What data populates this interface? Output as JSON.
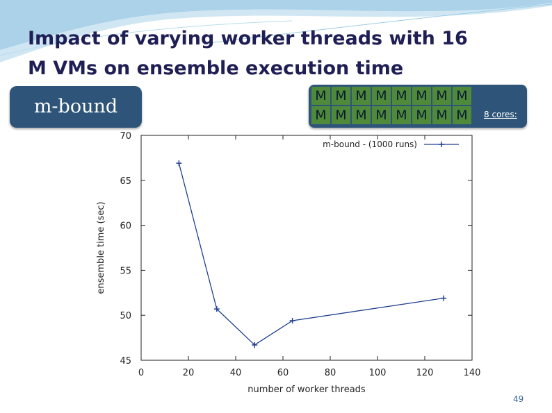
{
  "slide": {
    "title_line1": "Impact of varying worker threads with 16",
    "title_m": "M",
    "title_line2_rest": " VMs on ensemble execution time",
    "badge_label": "m-bound",
    "vm_label": "M",
    "vm_count": 16,
    "cores_label": "8 cores:",
    "page_number": "49",
    "colors": {
      "badge": "#2e5579",
      "vm": "#4f8a3a",
      "series": "#1f3f8f"
    }
  },
  "chart_data": {
    "type": "line",
    "title": "",
    "xlabel": "number of worker threads",
    "ylabel": "ensemble time (sec)",
    "xlim": [
      0,
      140
    ],
    "ylim": [
      45,
      70
    ],
    "xticks": [
      "0",
      "20",
      "40",
      "60",
      "80",
      "100",
      "120",
      "140"
    ],
    "yticks": [
      "45",
      "50",
      "55",
      "60",
      "65",
      "70"
    ],
    "grid": false,
    "legend_position": "top-right",
    "series": [
      {
        "name": "m-bound - (1000 runs)",
        "x": [
          16,
          32,
          48,
          64,
          128
        ],
        "y": [
          66.9,
          50.7,
          46.7,
          49.4,
          51.9
        ]
      }
    ]
  }
}
